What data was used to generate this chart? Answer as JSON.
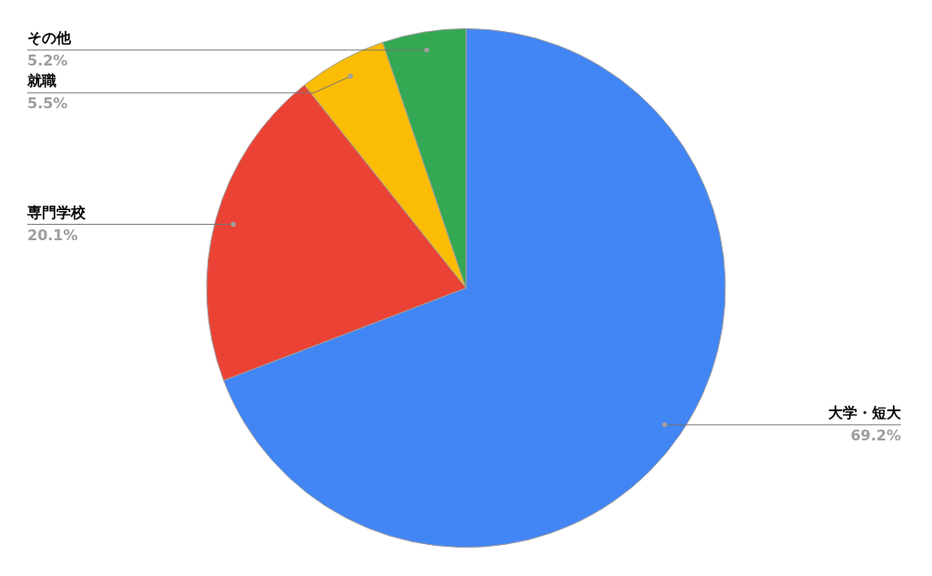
{
  "chart_data": {
    "type": "pie",
    "categories": [
      "大学・短大",
      "専門学校",
      "就職",
      "その他"
    ],
    "values": [
      69.2,
      20.1,
      5.5,
      5.2
    ],
    "value_labels": [
      "69.2%",
      "20.1%",
      "5.5%",
      "5.2%"
    ],
    "colors": [
      "#4285f4",
      "#ea4335",
      "#fbbc04",
      "#34a853"
    ]
  }
}
